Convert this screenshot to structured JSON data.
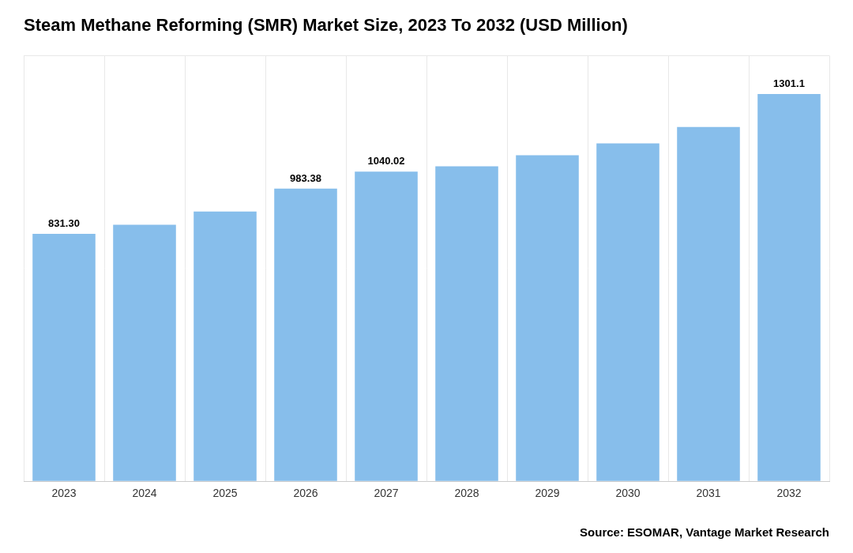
{
  "chart_data": {
    "type": "bar",
    "title": "Steam Methane Reforming (SMR) Market Size, 2023 To 2032 (USD Million)",
    "categories": [
      "2023",
      "2024",
      "2025",
      "2026",
      "2027",
      "2028",
      "2029",
      "2030",
      "2031",
      "2032"
    ],
    "values": [
      831.3,
      862.0,
      906.0,
      983.38,
      1040.02,
      1058.0,
      1095.0,
      1135.0,
      1190.0,
      1301.1
    ],
    "value_labels": [
      "831.30",
      null,
      null,
      "983.38",
      "1040.02",
      null,
      null,
      null,
      null,
      "1301.1"
    ],
    "data_labels": true,
    "color": "#87BEEB",
    "ylim": [
      0,
      1430
    ],
    "grid": true,
    "tick_labels": "x",
    "annotations": [
      "Source: ESOMAR, Vantage Market Research"
    ]
  }
}
